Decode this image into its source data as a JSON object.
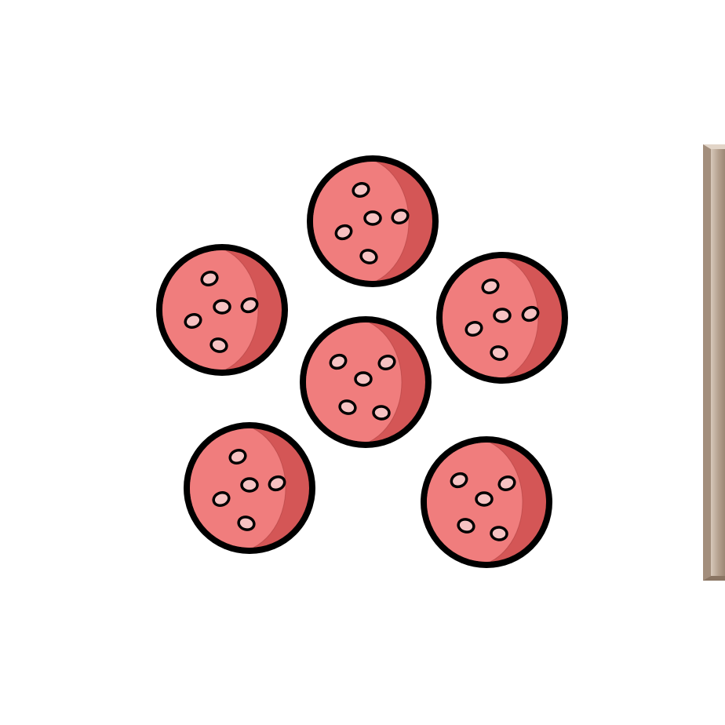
{
  "scene": {
    "subject": "pepperoni-slices",
    "slice_count": 6,
    "colors": {
      "background": "#ffffff",
      "slice_face": "#f07d7d",
      "slice_shade": "#d45656",
      "fat_spot": "#f6c2c2",
      "outline": "#000000",
      "edge_panel": "#b5a18f",
      "edge_panel_highlight": "#d8c9bb"
    },
    "icons": [
      "pepperoni-slice-icon",
      "fat-spot-icon"
    ]
  }
}
